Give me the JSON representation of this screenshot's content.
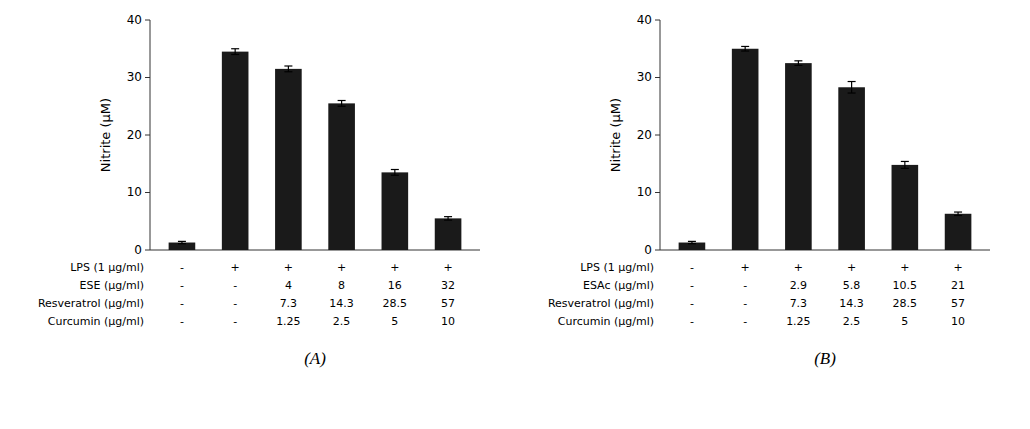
{
  "chart_data": [
    {
      "type": "bar",
      "title": "(A)",
      "ylabel": "Nitrite (μM)",
      "categories": [
        null,
        null,
        null,
        null,
        null,
        null
      ],
      "values": [
        1.3,
        34.5,
        31.5,
        25.5,
        13.5,
        5.5
      ],
      "errors": [
        0.2,
        0.5,
        0.5,
        0.5,
        0.5,
        0.3
      ],
      "color": "#1a1a1a",
      "ylim": [
        0,
        40
      ],
      "yticks": [
        0,
        10,
        20,
        30,
        40
      ],
      "grid": false,
      "tick_labels": "y",
      "table_rows": [
        [
          "LPS (1 μg/ml)",
          "-",
          "+",
          "+",
          "+",
          "+",
          "+"
        ],
        [
          "ESE (μg/ml)",
          "-",
          "-",
          "4",
          "8",
          "16",
          "32"
        ],
        [
          "Resveratrol (μg/ml)",
          "-",
          "-",
          "7.3",
          "14.3",
          "28.5",
          "57"
        ],
        [
          "Curcumin (μg/ml)",
          "-",
          "-",
          "1.25",
          "2.5",
          "5",
          "10"
        ]
      ]
    },
    {
      "type": "bar",
      "title": "(B)",
      "ylabel": "Nitrite (μM)",
      "categories": [
        null,
        null,
        null,
        null,
        null,
        null
      ],
      "values": [
        1.3,
        35.0,
        32.5,
        28.3,
        14.8,
        6.3
      ],
      "errors": [
        0.2,
        0.4,
        0.4,
        1.0,
        0.6,
        0.3
      ],
      "color": "#1a1a1a",
      "ylim": [
        0,
        40
      ],
      "yticks": [
        0,
        10,
        20,
        30,
        40
      ],
      "grid": false,
      "tick_labels": "y",
      "table_rows": [
        [
          "LPS (1 μg/ml)",
          "-",
          "+",
          "+",
          "+",
          "+",
          "+"
        ],
        [
          "ESAc (μg/ml)",
          "-",
          "-",
          "2.9",
          "5.8",
          "10.5",
          "21"
        ],
        [
          "Resveratrol (μg/ml)",
          "-",
          "-",
          "7.3",
          "14.3",
          "28.5",
          "57"
        ],
        [
          "Curcumin (μg/ml)",
          "-",
          "-",
          "1.25",
          "2.5",
          "5",
          "10"
        ]
      ]
    }
  ]
}
